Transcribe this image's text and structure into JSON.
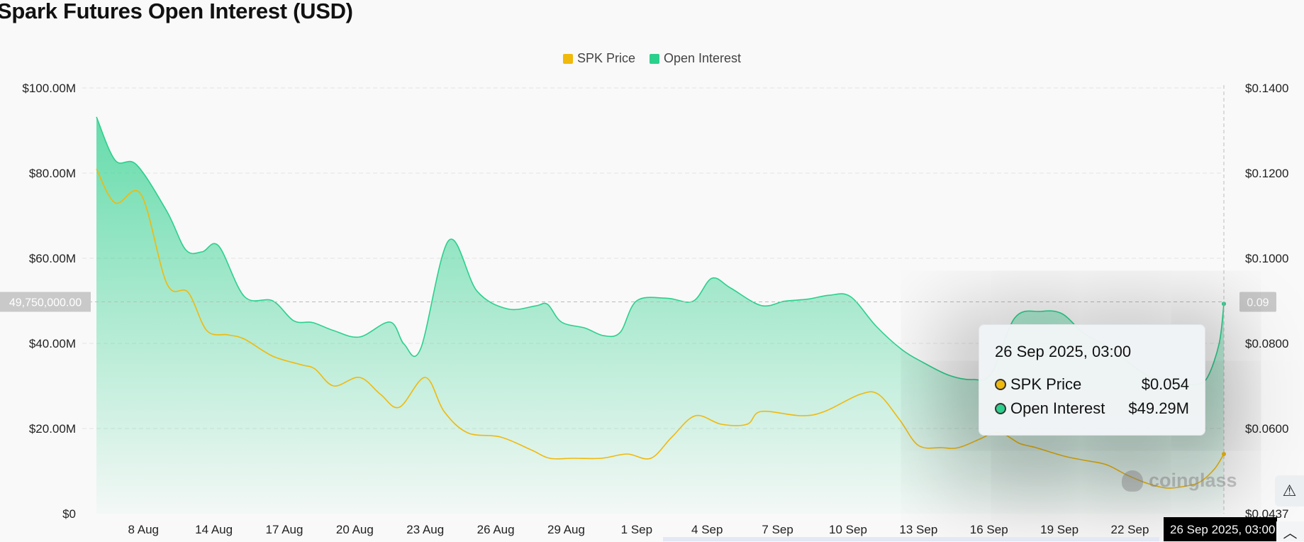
{
  "page": {
    "title": "Spark Futures Open Interest (USD)"
  },
  "legend": [
    {
      "label": "SPK Price",
      "color": "#f0b90b"
    },
    {
      "label": "Open Interest",
      "color": "#2bd08c"
    }
  ],
  "crosshair": {
    "left_label": "49,750,000.00",
    "right_label": "0.09",
    "x_label": "26 Sep 2025, 03:00"
  },
  "tooltip": {
    "date": "26 Sep 2025, 03:00",
    "rows": [
      {
        "name": "SPK Price",
        "value": "$0.054",
        "color": "#f0b90b"
      },
      {
        "name": "Open Interest",
        "value": "$49.29M",
        "color": "#2bd08c"
      }
    ]
  },
  "watermark": "coinglass",
  "icons": {
    "alert": "alert-icon",
    "scroll_top": "chevron-up-icon",
    "watermark": "coinglass-logo-icon"
  },
  "chart_data": {
    "type": "line",
    "title": "Spark Futures Open Interest (USD)",
    "x_ticks": [
      "8 Aug",
      "14 Aug",
      "17 Aug",
      "20 Aug",
      "23 Aug",
      "26 Aug",
      "29 Aug",
      "1 Sep",
      "4 Sep",
      "7 Sep",
      "10 Sep",
      "13 Sep",
      "16 Sep",
      "19 Sep",
      "22 Sep"
    ],
    "y_left": {
      "ticks": [
        "$0",
        "$20.00M",
        "$40.00M",
        "$60.00M",
        "$80.00M",
        "$100.00M"
      ],
      "range": [
        0,
        100000000
      ]
    },
    "y_right": {
      "ticks": [
        "$0.0437",
        "$0.0600",
        "$0.0800",
        "$0.1000",
        "$0.1200",
        "$0.1400"
      ],
      "range": [
        0.04,
        0.14
      ]
    },
    "grid": true,
    "legend_position": "top-center",
    "x_range_days": [
      0,
      48.0
    ],
    "series": [
      {
        "name": "Open Interest",
        "axis": "left",
        "color": "#2bd08c",
        "area": true,
        "x": [
          0,
          0.8,
          1.7,
          3.0,
          3.8,
          4.5,
          5.2,
          6.3,
          7.5,
          8.4,
          9.2,
          10.1,
          11.2,
          12.5,
          13.1,
          13.8,
          15.0,
          16.2,
          17.5,
          18.7,
          19.2,
          19.8,
          20.8,
          21.6,
          22.3,
          23.0,
          24.3,
          25.4,
          26.2,
          27.0,
          28.3,
          29.3,
          30.3,
          31.2,
          32.1,
          33.2,
          34.3,
          35.2,
          36.3,
          37.3,
          38.1,
          39.1,
          40.2,
          41.1,
          42.0,
          42.8,
          43.6,
          44.3,
          44.9,
          45.5,
          46.2,
          46.8,
          47.3,
          47.8,
          48.0
        ],
        "y": [
          93.2,
          83,
          82,
          71,
          62,
          61.5,
          62.9,
          51,
          50,
          45.3,
          44.9,
          43,
          41.5,
          45,
          39.8,
          38.7,
          64.2,
          52.3,
          48.1,
          48.8,
          49.2,
          45,
          43.6,
          41.8,
          42.6,
          50,
          50.6,
          49.9,
          55.3,
          53,
          48.9,
          49.9,
          50.4,
          51.3,
          51,
          44,
          38.5,
          35.5,
          32.5,
          31.5,
          33,
          46,
          47.5,
          47,
          42.5,
          40,
          37,
          34,
          32,
          31.2,
          30.6,
          30.4,
          32,
          40,
          49.3
        ]
      },
      {
        "name": "SPK Price",
        "axis": "right",
        "color": "#f0b90b",
        "area": false,
        "x": [
          0,
          0.8,
          1.9,
          3.0,
          3.9,
          4.7,
          5.6,
          6.3,
          7.5,
          8.7,
          9.3,
          10.1,
          11.2,
          12.1,
          12.9,
          14.0,
          14.8,
          15.8,
          17.2,
          18.5,
          19.3,
          20.3,
          21.5,
          22.6,
          23.6,
          24.5,
          25.5,
          26.6,
          27.7,
          28.3,
          30.0,
          31.0,
          32.5,
          33.3,
          34.2,
          35.0,
          36.0,
          36.7,
          37.6,
          38.2,
          38.7,
          39.3,
          40.0,
          41.2,
          42.1,
          43.0,
          43.9,
          44.8,
          45.6,
          46.4,
          47.0,
          47.6,
          48.0
        ],
        "y": [
          0.121,
          0.113,
          0.115,
          0.094,
          0.092,
          0.083,
          0.082,
          0.081,
          0.077,
          0.075,
          0.074,
          0.07,
          0.072,
          0.068,
          0.065,
          0.072,
          0.064,
          0.059,
          0.058,
          0.055,
          0.053,
          0.053,
          0.053,
          0.054,
          0.053,
          0.058,
          0.063,
          0.061,
          0.061,
          0.064,
          0.063,
          0.064,
          0.068,
          0.068,
          0.062,
          0.056,
          0.0555,
          0.0555,
          0.0575,
          0.059,
          0.0585,
          0.0565,
          0.0555,
          0.0535,
          0.0525,
          0.0515,
          0.049,
          0.047,
          0.046,
          0.0465,
          0.0475,
          0.0505,
          0.054
        ]
      }
    ]
  }
}
